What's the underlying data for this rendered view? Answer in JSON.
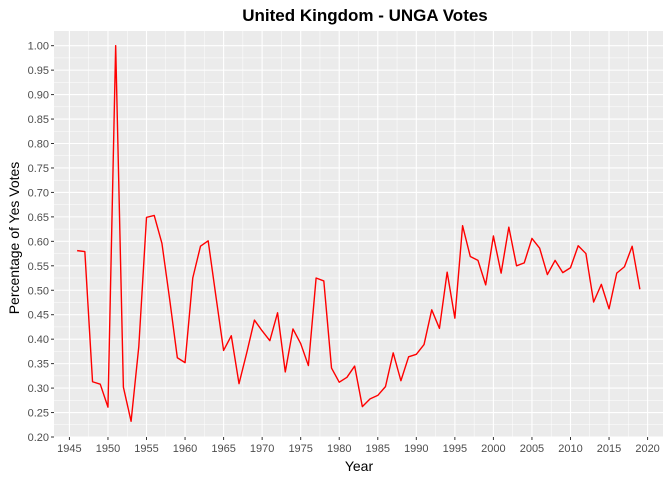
{
  "chart_data": {
    "type": "line",
    "title": "United Kingdom - UNGA Votes",
    "xlabel": "Year",
    "ylabel": "Percentage of Yes Votes",
    "xlim": [
      1943,
      2022
    ],
    "ylim": [
      0.2,
      1.03
    ],
    "x_ticks": [
      1945,
      1950,
      1955,
      1960,
      1965,
      1970,
      1975,
      1980,
      1985,
      1990,
      1995,
      2000,
      2005,
      2010,
      2015,
      2020
    ],
    "y_ticks": [
      0.2,
      0.25,
      0.3,
      0.35,
      0.4,
      0.45,
      0.5,
      0.55,
      0.6,
      0.65,
      0.7,
      0.75,
      0.8,
      0.85,
      0.9,
      0.95,
      1.0
    ],
    "grid": true,
    "legend": "none",
    "colors": {
      "line": "#ff0000",
      "panel": "#ebebeb",
      "grid": "#ffffff"
    },
    "series": [
      {
        "x": [
          1946,
          1947,
          1948,
          1949,
          1950,
          1951,
          1952,
          1953,
          1954,
          1955,
          1956,
          1957,
          1958,
          1959,
          1960,
          1961,
          1962,
          1963,
          1964,
          1965,
          1966,
          1967,
          1968,
          1969,
          1970,
          1971,
          1972,
          1973,
          1974,
          1975,
          1976,
          1977,
          1978,
          1979,
          1980,
          1981,
          1982,
          1983,
          1984,
          1985,
          1986,
          1987,
          1988,
          1989,
          1990,
          1991,
          1992,
          1993,
          1994,
          1995,
          1996,
          1997,
          1998,
          1999,
          2000,
          2001,
          2002,
          2003,
          2004,
          2005,
          2006,
          2007,
          2008,
          2009,
          2010,
          2011,
          2012,
          2013,
          2014,
          2015,
          2016,
          2017,
          2018,
          2019
        ],
        "y": [
          0.581,
          0.579,
          0.313,
          0.308,
          0.261,
          1.0,
          0.302,
          0.232,
          0.385,
          0.649,
          0.653,
          0.596,
          0.482,
          0.362,
          0.352,
          0.525,
          0.59,
          0.601,
          0.488,
          0.377,
          0.407,
          0.309,
          0.372,
          0.439,
          0.417,
          0.397,
          0.454,
          0.333,
          0.421,
          0.391,
          0.346,
          0.525,
          0.519,
          0.341,
          0.312,
          0.322,
          0.345,
          0.262,
          0.278,
          0.285,
          0.303,
          0.372,
          0.315,
          0.364,
          0.369,
          0.389,
          0.46,
          0.422,
          0.537,
          0.443,
          0.632,
          0.569,
          0.561,
          0.511,
          0.611,
          0.535,
          0.629,
          0.55,
          0.556,
          0.606,
          0.586,
          0.532,
          0.561,
          0.536,
          0.546,
          0.591,
          0.575,
          0.476,
          0.512,
          0.462,
          0.535,
          0.548,
          0.59,
          0.502
        ]
      }
    ]
  }
}
